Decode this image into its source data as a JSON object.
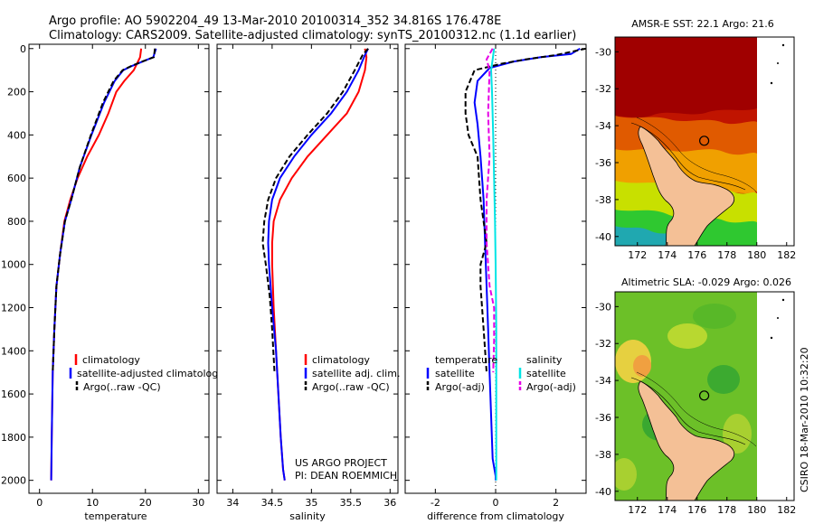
{
  "header": {
    "line1": "Argo profile: AO 5902204_49 13-Mar-2010 20100314_352 34.816S 176.478E",
    "line2": "Climatology: CARS2009. Satellite-adjusted climatology: synTS_20100312.nc (1.1d earlier)"
  },
  "colors": {
    "climatology": "#ff0000",
    "satellite": "#0000ff",
    "argo": "#000000",
    "salinity_satellite": "#00e5e5",
    "salinity_argo": "#e600e6"
  },
  "chart_data": [
    {
      "type": "line",
      "id": "temperature",
      "xlabel": "temperature",
      "ylabel": "",
      "xlim": [
        -2,
        32
      ],
      "ylim": [
        2060,
        -20
      ],
      "xticks": [
        0,
        10,
        20,
        30
      ],
      "yticks": [
        0,
        200,
        400,
        600,
        800,
        1000,
        1200,
        1400,
        1600,
        1800,
        2000
      ],
      "legend": [
        "climatology",
        "satellite-adjusted climatology",
        "Argo(..raw -QC)"
      ],
      "series": [
        {
          "name": "climatology",
          "color": "#ff0000",
          "dash": false,
          "x": [
            19.2,
            19.0,
            17.8,
            16.0,
            14.5,
            13.0,
            11.2,
            9.0,
            7.2,
            5.8,
            4.7,
            3.9,
            3.2,
            2.8,
            2.5,
            2.3,
            2.2
          ],
          "y": [
            0,
            40,
            100,
            150,
            200,
            300,
            400,
            500,
            600,
            700,
            800,
            950,
            1100,
            1300,
            1500,
            1800,
            2000
          ]
        },
        {
          "name": "satellite-adjusted climatology",
          "color": "#0000ff",
          "dash": false,
          "x": [
            22.0,
            21.5,
            19.5,
            17.5,
            15.8,
            14.2,
            12.2,
            9.8,
            7.6,
            6.0,
            4.8,
            3.9,
            3.2,
            2.8,
            2.5,
            2.3,
            2.2
          ],
          "y": [
            0,
            40,
            60,
            80,
            100,
            150,
            250,
            400,
            550,
            700,
            800,
            950,
            1100,
            1300,
            1500,
            1800,
            2000
          ]
        },
        {
          "name": "Argo(..raw -QC)",
          "color": "#000000",
          "dash": true,
          "x": [
            21.8,
            21.6,
            19.4,
            17.4,
            15.7,
            14.0,
            12.0,
            9.7,
            7.6,
            6.0,
            4.8,
            3.9,
            3.2,
            2.8,
            2.5
          ],
          "y": [
            0,
            40,
            60,
            80,
            100,
            150,
            250,
            400,
            550,
            700,
            800,
            950,
            1100,
            1300,
            1500
          ]
        }
      ]
    },
    {
      "type": "line",
      "id": "salinity",
      "xlabel": "salinity",
      "ylabel": "",
      "xlim": [
        33.8,
        36.1
      ],
      "ylim": [
        2060,
        -20
      ],
      "xticks": [
        34,
        34.5,
        35,
        35.5,
        36
      ],
      "yticks": [
        0,
        200,
        400,
        600,
        800,
        1000,
        1200,
        1400,
        1600,
        1800,
        2000
      ],
      "legend": [
        "climatology",
        "satellite adj. clim.",
        "Argo(..raw -QC)"
      ],
      "annotation": [
        "US ARGO PROJECT",
        "PI: DEAN ROEMMICH"
      ],
      "series": [
        {
          "name": "climatology",
          "color": "#ff0000",
          "dash": false,
          "x": [
            35.68,
            35.7,
            35.68,
            35.6,
            35.45,
            35.2,
            34.95,
            34.75,
            34.6,
            34.52,
            34.5,
            34.5,
            34.52,
            34.55,
            34.58,
            34.61,
            34.64,
            34.66
          ],
          "y": [
            0,
            40,
            100,
            200,
            300,
            400,
            500,
            600,
            700,
            800,
            900,
            1000,
            1200,
            1400,
            1600,
            1800,
            1950,
            2000
          ]
        },
        {
          "name": "satellite adj. clim.",
          "color": "#0000ff",
          "dash": false,
          "x": [
            35.72,
            35.68,
            35.6,
            35.45,
            35.25,
            35.0,
            34.78,
            34.6,
            34.5,
            34.46,
            34.45,
            34.46,
            34.5,
            34.55,
            34.58,
            34.61,
            34.64,
            34.66
          ],
          "y": [
            0,
            30,
            100,
            200,
            300,
            400,
            500,
            600,
            700,
            800,
            900,
            1000,
            1200,
            1400,
            1600,
            1800,
            1950,
            2000
          ]
        },
        {
          "name": "Argo(..raw -QC)",
          "color": "#000000",
          "dash": true,
          "x": [
            35.72,
            35.65,
            35.55,
            35.4,
            35.2,
            34.95,
            34.72,
            34.55,
            34.45,
            34.4,
            34.38,
            34.42,
            34.47,
            34.5,
            34.53
          ],
          "y": [
            0,
            30,
            100,
            200,
            300,
            400,
            500,
            600,
            700,
            800,
            900,
            1000,
            1150,
            1300,
            1500
          ]
        }
      ]
    },
    {
      "type": "line",
      "id": "difference",
      "xlabel": "difference from climatology",
      "ylabel": "",
      "xlim": [
        -3,
        3
      ],
      "ylim": [
        2060,
        -20
      ],
      "xticks": [
        -2,
        0,
        2
      ],
      "yticks": [
        0,
        200,
        400,
        600,
        800,
        1000,
        1200,
        1400,
        1600,
        1800,
        2000
      ],
      "legend_temperature": [
        "temperature",
        "satellite",
        "Argo(-adj)"
      ],
      "legend_salinity": [
        "salinity",
        "satellite",
        "Argo(-adj)"
      ],
      "series": [
        {
          "name": "temperature satellite",
          "color": "#0000ff",
          "dash": false,
          "x": [
            2.8,
            2.5,
            1.5,
            0.6,
            -0.2,
            -0.6,
            -0.7,
            -0.6,
            -0.5,
            -0.4,
            -0.35,
            -0.3,
            -0.25,
            -0.2,
            -0.15,
            -0.1,
            0,
            0
          ],
          "y": [
            0,
            25,
            40,
            60,
            90,
            150,
            250,
            350,
            500,
            700,
            900,
            1100,
            1300,
            1500,
            1700,
            1900,
            1980,
            2000
          ]
        },
        {
          "name": "temperature Argo(-adj)",
          "color": "#000000",
          "dash": true,
          "x": [
            3.0,
            2.0,
            1.0,
            0.2,
            -0.7,
            -1.0,
            -1.0,
            -0.9,
            -0.6,
            -0.5,
            -0.3,
            -0.5,
            -0.5,
            -0.4,
            -0.3
          ],
          "y": [
            0,
            30,
            50,
            70,
            100,
            200,
            300,
            400,
            500,
            700,
            900,
            1000,
            1100,
            1300,
            1500
          ]
        },
        {
          "name": "salinity satellite",
          "color": "#00e5e5",
          "dash": false,
          "x": [
            -0.05,
            -0.1,
            -0.15,
            -0.12,
            -0.08,
            -0.05,
            -0.02,
            0,
            0.02,
            0.02,
            0.02,
            0.02
          ],
          "y": [
            0,
            50,
            100,
            200,
            400,
            600,
            800,
            1000,
            1300,
            1600,
            1900,
            2000
          ]
        },
        {
          "name": "salinity Argo(-adj)",
          "color": "#e600e6",
          "dash": true,
          "x": [
            -0.1,
            -0.3,
            -0.2,
            -0.25,
            -0.2,
            -0.3,
            -0.3,
            -0.2,
            -0.05,
            -0.05,
            -0.08
          ],
          "y": [
            0,
            50,
            100,
            300,
            500,
            700,
            900,
            1100,
            1200,
            1350,
            1500
          ]
        }
      ]
    },
    {
      "type": "heatmap",
      "id": "sst_map",
      "title": "AMSR-E SST: 22.1 Argo: 21.6",
      "xlim": [
        170.5,
        182.5
      ],
      "ylim": [
        -40.5,
        -29.2
      ],
      "xticks": [
        172,
        174,
        176,
        178,
        180,
        182
      ],
      "yticks": [
        -30,
        -32,
        -34,
        -36,
        -38,
        -40
      ],
      "marker": {
        "lon": 176.478,
        "lat": -34.816
      }
    },
    {
      "type": "heatmap",
      "id": "sla_map",
      "title": "Altimetric SLA: -0.029 Argo: 0.026",
      "xlim": [
        170.5,
        182.5
      ],
      "ylim": [
        -40.5,
        -29.2
      ],
      "xticks": [
        172,
        174,
        176,
        178,
        180,
        182
      ],
      "yticks": [
        -30,
        -32,
        -34,
        -36,
        -38,
        -40
      ],
      "marker": {
        "lon": 176.478,
        "lat": -34.816
      }
    }
  ],
  "footer": {
    "credit": "CSIRO 18-Mar-2010 10:32:20"
  }
}
